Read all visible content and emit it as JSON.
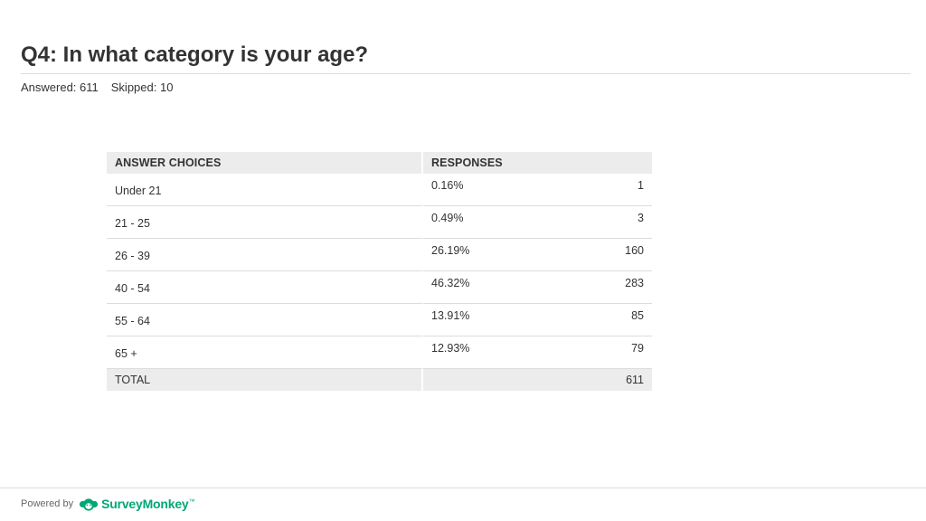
{
  "question": {
    "title": "Q4: In what category is your age?",
    "answered_label": "Answered: 611",
    "skipped_label": "Skipped: 10"
  },
  "table": {
    "headers": {
      "choices": "ANSWER CHOICES",
      "responses": "RESPONSES"
    },
    "rows": [
      {
        "choice": "Under 21",
        "percent": "0.16%",
        "count": "1"
      },
      {
        "choice": "21 - 25",
        "percent": "0.49%",
        "count": "3"
      },
      {
        "choice": "26 - 39",
        "percent": "26.19%",
        "count": "160"
      },
      {
        "choice": "40 - 54",
        "percent": "46.32%",
        "count": "283"
      },
      {
        "choice": "55 - 64",
        "percent": "13.91%",
        "count": "85"
      },
      {
        "choice": "65 +",
        "percent": "12.93%",
        "count": "79"
      }
    ],
    "total": {
      "label": "TOTAL",
      "count": "611"
    }
  },
  "footer": {
    "powered_by": "Powered by",
    "brand": "SurveyMonkey",
    "brand_mark": "™",
    "logo_icon": "surveymonkey-logo-icon",
    "brand_color": "#00a775"
  }
}
